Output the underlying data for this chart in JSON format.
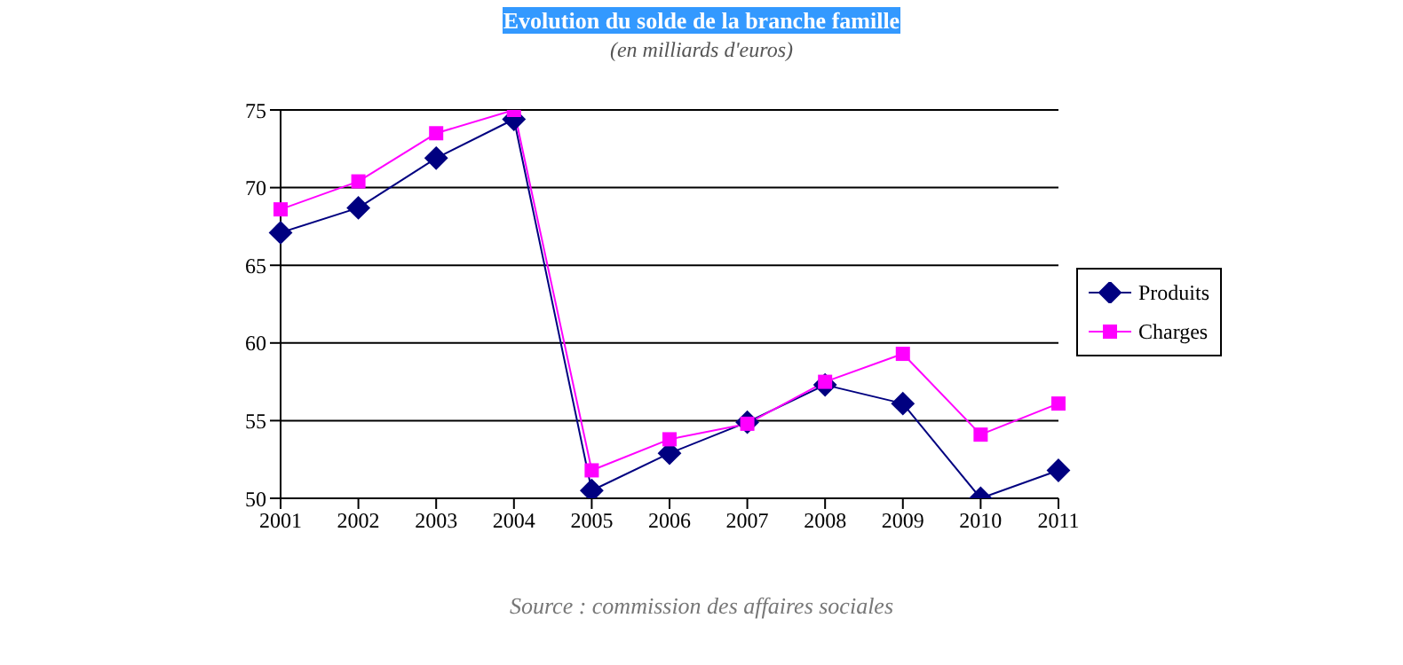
{
  "chart_data": {
    "type": "line",
    "title": "Evolution du solde de la branche famille",
    "subtitle": "(en milliards d'euros)",
    "annotations": [
      "Source : commission des affaires sociales"
    ],
    "categories": [
      "2001",
      "2002",
      "2003",
      "2004",
      "2005",
      "2006",
      "2007",
      "2008",
      "2009",
      "2010",
      "2011"
    ],
    "series": [
      {
        "name": "Produits",
        "color": "#000080",
        "marker": "diamond",
        "values": [
          67.1,
          68.7,
          71.9,
          74.4,
          50.5,
          52.9,
          54.9,
          57.3,
          56.1,
          50,
          51.8
        ]
      },
      {
        "name": "Charges",
        "color": "#ff00ff",
        "marker": "square",
        "values": [
          68.6,
          70.4,
          73.5,
          75,
          51.8,
          53.8,
          54.8,
          57.5,
          59.3,
          54.1,
          56.1
        ]
      }
    ],
    "ylim": [
      50,
      75
    ],
    "yticks": [
      50,
      55,
      60,
      65,
      70,
      75
    ],
    "grid": "y",
    "legend": "right"
  }
}
